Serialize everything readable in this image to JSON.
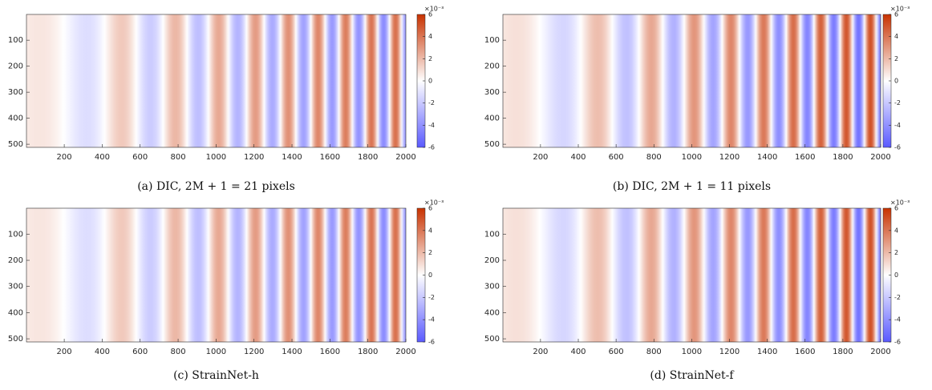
{
  "chart_data": [
    {
      "type": "heatmap",
      "caption": "(a) DIC, 2M + 1 = 21 pixels",
      "xlim": [
        1,
        2000
      ],
      "xticks": [
        200,
        400,
        600,
        800,
        1000,
        1200,
        1400,
        1600,
        1800,
        2000
      ],
      "ylim": [
        1,
        512
      ],
      "yticks": [
        100,
        200,
        300,
        400,
        500
      ],
      "clim": [
        -6,
        6
      ],
      "cticks": [
        -6,
        -4,
        -2,
        0,
        2,
        4,
        6
      ],
      "colorbar_exponent": "×10⁻³",
      "colors": [
        "#5a5aff",
        "#ffffff",
        "#c83200"
      ]
    },
    {
      "type": "heatmap",
      "caption": "(b) DIC, 2M + 1 = 11 pixels",
      "xlim": [
        1,
        2000
      ],
      "xticks": [
        200,
        400,
        600,
        800,
        1000,
        1200,
        1400,
        1600,
        1800,
        2000
      ],
      "ylim": [
        1,
        512
      ],
      "yticks": [
        100,
        200,
        300,
        400,
        500
      ],
      "clim": [
        -6,
        6
      ],
      "cticks": [
        -6,
        -4,
        -2,
        0,
        2,
        4,
        6
      ],
      "colorbar_exponent": "×10⁻³",
      "colors": [
        "#5a5aff",
        "#ffffff",
        "#c83200"
      ]
    },
    {
      "type": "heatmap",
      "caption": "(c) StrainNet-h",
      "xlim": [
        1,
        2000
      ],
      "xticks": [
        200,
        400,
        600,
        800,
        1000,
        1200,
        1400,
        1600,
        1800,
        2000
      ],
      "ylim": [
        1,
        512
      ],
      "yticks": [
        100,
        200,
        300,
        400,
        500
      ],
      "clim": [
        -6,
        6
      ],
      "cticks": [
        -6,
        -4,
        -2,
        0,
        2,
        4,
        6
      ],
      "colorbar_exponent": "×10⁻³",
      "colors": [
        "#5a5aff",
        "#ffffff",
        "#c83200"
      ]
    },
    {
      "type": "heatmap",
      "caption": "(d) StrainNet-f",
      "xlim": [
        1,
        2000
      ],
      "xticks": [
        200,
        400,
        600,
        800,
        1000,
        1200,
        1400,
        1600,
        1800,
        2000
      ],
      "ylim": [
        1,
        512
      ],
      "yticks": [
        100,
        200,
        300,
        400,
        500
      ],
      "clim": [
        -6,
        6
      ],
      "cticks": [
        -6,
        -4,
        -2,
        0,
        2,
        4,
        6
      ],
      "colorbar_exponent": "×10⁻³",
      "colors": [
        "#5a5aff",
        "#ffffff",
        "#c83200"
      ]
    }
  ]
}
